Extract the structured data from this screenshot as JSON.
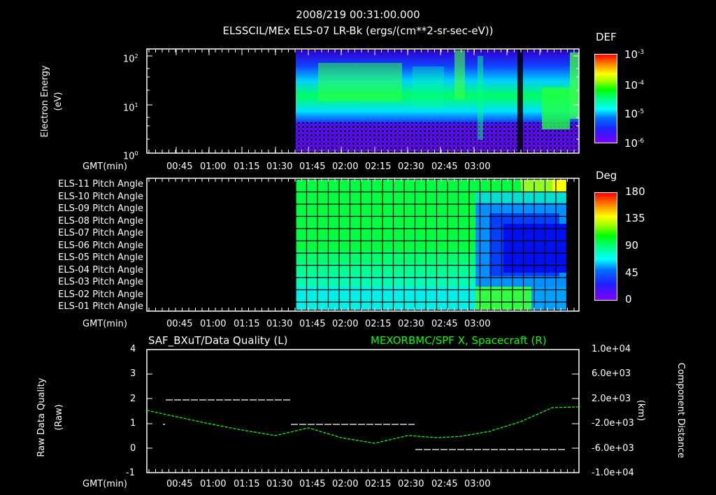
{
  "header": {
    "datetime": "2008/219 00:31:00.000",
    "subtitle": "ELSSCIL/MEx ELS-07 LR-Bk  (ergs/(cm**2-sr-sec-eV))"
  },
  "time_axis": {
    "label": "GMT(min)",
    "ticks": [
      "00:45",
      "01:00",
      "01:15",
      "01:30",
      "01:45",
      "02:00",
      "02:15",
      "02:30",
      "02:45",
      "03:00"
    ]
  },
  "panel1": {
    "ylabel": "Electron Energy",
    "yunit": "(eV)",
    "yticks": [
      {
        "base": "10",
        "exp": "2"
      },
      {
        "base": "10",
        "exp": "1"
      },
      {
        "base": "10",
        "exp": "0"
      }
    ],
    "colorbar": {
      "title": "DEF",
      "labels": [
        {
          "base": "10",
          "exp": "-3"
        },
        {
          "base": "10",
          "exp": "-4"
        },
        {
          "base": "10",
          "exp": "-5"
        },
        {
          "base": "10",
          "exp": "-6"
        }
      ]
    }
  },
  "panel2": {
    "rows": [
      "ELS-11 Pitch Angle",
      "ELS-10 Pitch Angle",
      "ELS-09 Pitch Angle",
      "ELS-08 Pitch Angle",
      "ELS-07 Pitch Angle",
      "ELS-06 Pitch Angle",
      "ELS-05 Pitch Angle",
      "ELS-04 Pitch Angle",
      "ELS-03 Pitch Angle",
      "ELS-02 Pitch Angle",
      "ELS-01 Pitch Angle"
    ],
    "colorbar": {
      "title": "Deg",
      "labels": [
        "180",
        "135",
        "90",
        "45",
        "0"
      ]
    }
  },
  "panel3": {
    "left_title": "SAF_BXuT/Data Quality (L)",
    "right_title": "MEXORBMC/SPF X, Spacecraft (R)",
    "ylabel": "Raw Data Quality",
    "yunit": "(Raw)",
    "yticks": [
      "4",
      "3",
      "2",
      "1",
      "0",
      "-1"
    ],
    "y2label": "Component Distance",
    "y2unit": "(km)",
    "y2ticks": [
      "1.0e+04",
      "6.0e+03",
      "2.0e+03",
      "-2.0e+03",
      "-6.0e+03",
      "-1.0e+04"
    ]
  },
  "colors": {
    "accent_green": "#00ff00",
    "background": "#000000",
    "foreground": "#ffffff"
  },
  "chart_data": [
    {
      "type": "heatmap",
      "title": "ELSSCIL/MEx ELS-07 LR-Bk (ergs/(cm**2-sr-sec-eV))",
      "xlabel": "GMT(min)",
      "ylabel": "Electron Energy (eV)",
      "yscale": "log",
      "ylim": [
        1,
        150
      ],
      "xlim": [
        "00:31",
        "03:09"
      ],
      "data_start": "01:25",
      "colorbar": {
        "label": "DEF",
        "scale": "log",
        "range": [
          1e-06,
          0.001
        ]
      },
      "features": [
        {
          "time": "01:30-02:05",
          "energy_eV": "10-50",
          "level": "~1e-4 (green)"
        },
        {
          "time": "02:45-03:05",
          "energy_eV": "4-12",
          "level": "~1e-4 (green)"
        },
        {
          "time": "03:05-03:09",
          "energy_eV": "20-150",
          "level": "~1e-4 (green)"
        }
      ]
    },
    {
      "type": "heatmap",
      "title": "ELS Pitch Angle",
      "xlabel": "GMT(min)",
      "categories": [
        "ELS-01",
        "ELS-02",
        "ELS-03",
        "ELS-04",
        "ELS-05",
        "ELS-06",
        "ELS-07",
        "ELS-08",
        "ELS-09",
        "ELS-10",
        "ELS-11"
      ],
      "colorbar": {
        "label": "Deg",
        "range": [
          0,
          180
        ],
        "ticks": [
          0,
          45,
          90,
          135,
          180
        ]
      },
      "data_start": "01:25",
      "data_end": "03:06",
      "description": "~90-110 deg before 02:30 (green, decreasing to ~65 for ELS-01); 02:35-03:05 minimum ~15-30 deg around ELS-04..ELS-07; ELS-11 reaches ~135 near 03:05"
    },
    {
      "type": "line",
      "title": "SAF_BXuT/Data Quality (L) / MEXORBMC/SPF X, Spacecraft (R)",
      "xlabel": "GMT(min)",
      "series": [
        {
          "name": "Data Quality (L)",
          "axis": "left",
          "ylim": [
            -1,
            4
          ],
          "segments": [
            {
              "x": [
                "00:40",
                "00:40"
              ],
              "y": 1
            },
            {
              "x": [
                "00:40",
                "01:25"
              ],
              "y": 2
            },
            {
              "x": [
                "01:25",
                "02:12"
              ],
              "y": 1
            },
            {
              "x": [
                "02:12",
                "03:05"
              ],
              "y": 0
            }
          ]
        },
        {
          "name": "SPF X (R)",
          "axis": "right",
          "unit": "km",
          "ylim": [
            -10000,
            10000
          ],
          "color": "#00ff00",
          "x": [
            "00:31",
            "00:45",
            "01:00",
            "01:15",
            "01:30",
            "01:45",
            "02:00",
            "02:15",
            "02:30",
            "02:45",
            "03:00",
            "03:09"
          ],
          "y": [
            1200,
            400,
            -700,
            -1800,
            -2800,
            -3700,
            -4400,
            -4800,
            -4700,
            -3800,
            -1500,
            1500
          ]
        }
      ]
    }
  ]
}
